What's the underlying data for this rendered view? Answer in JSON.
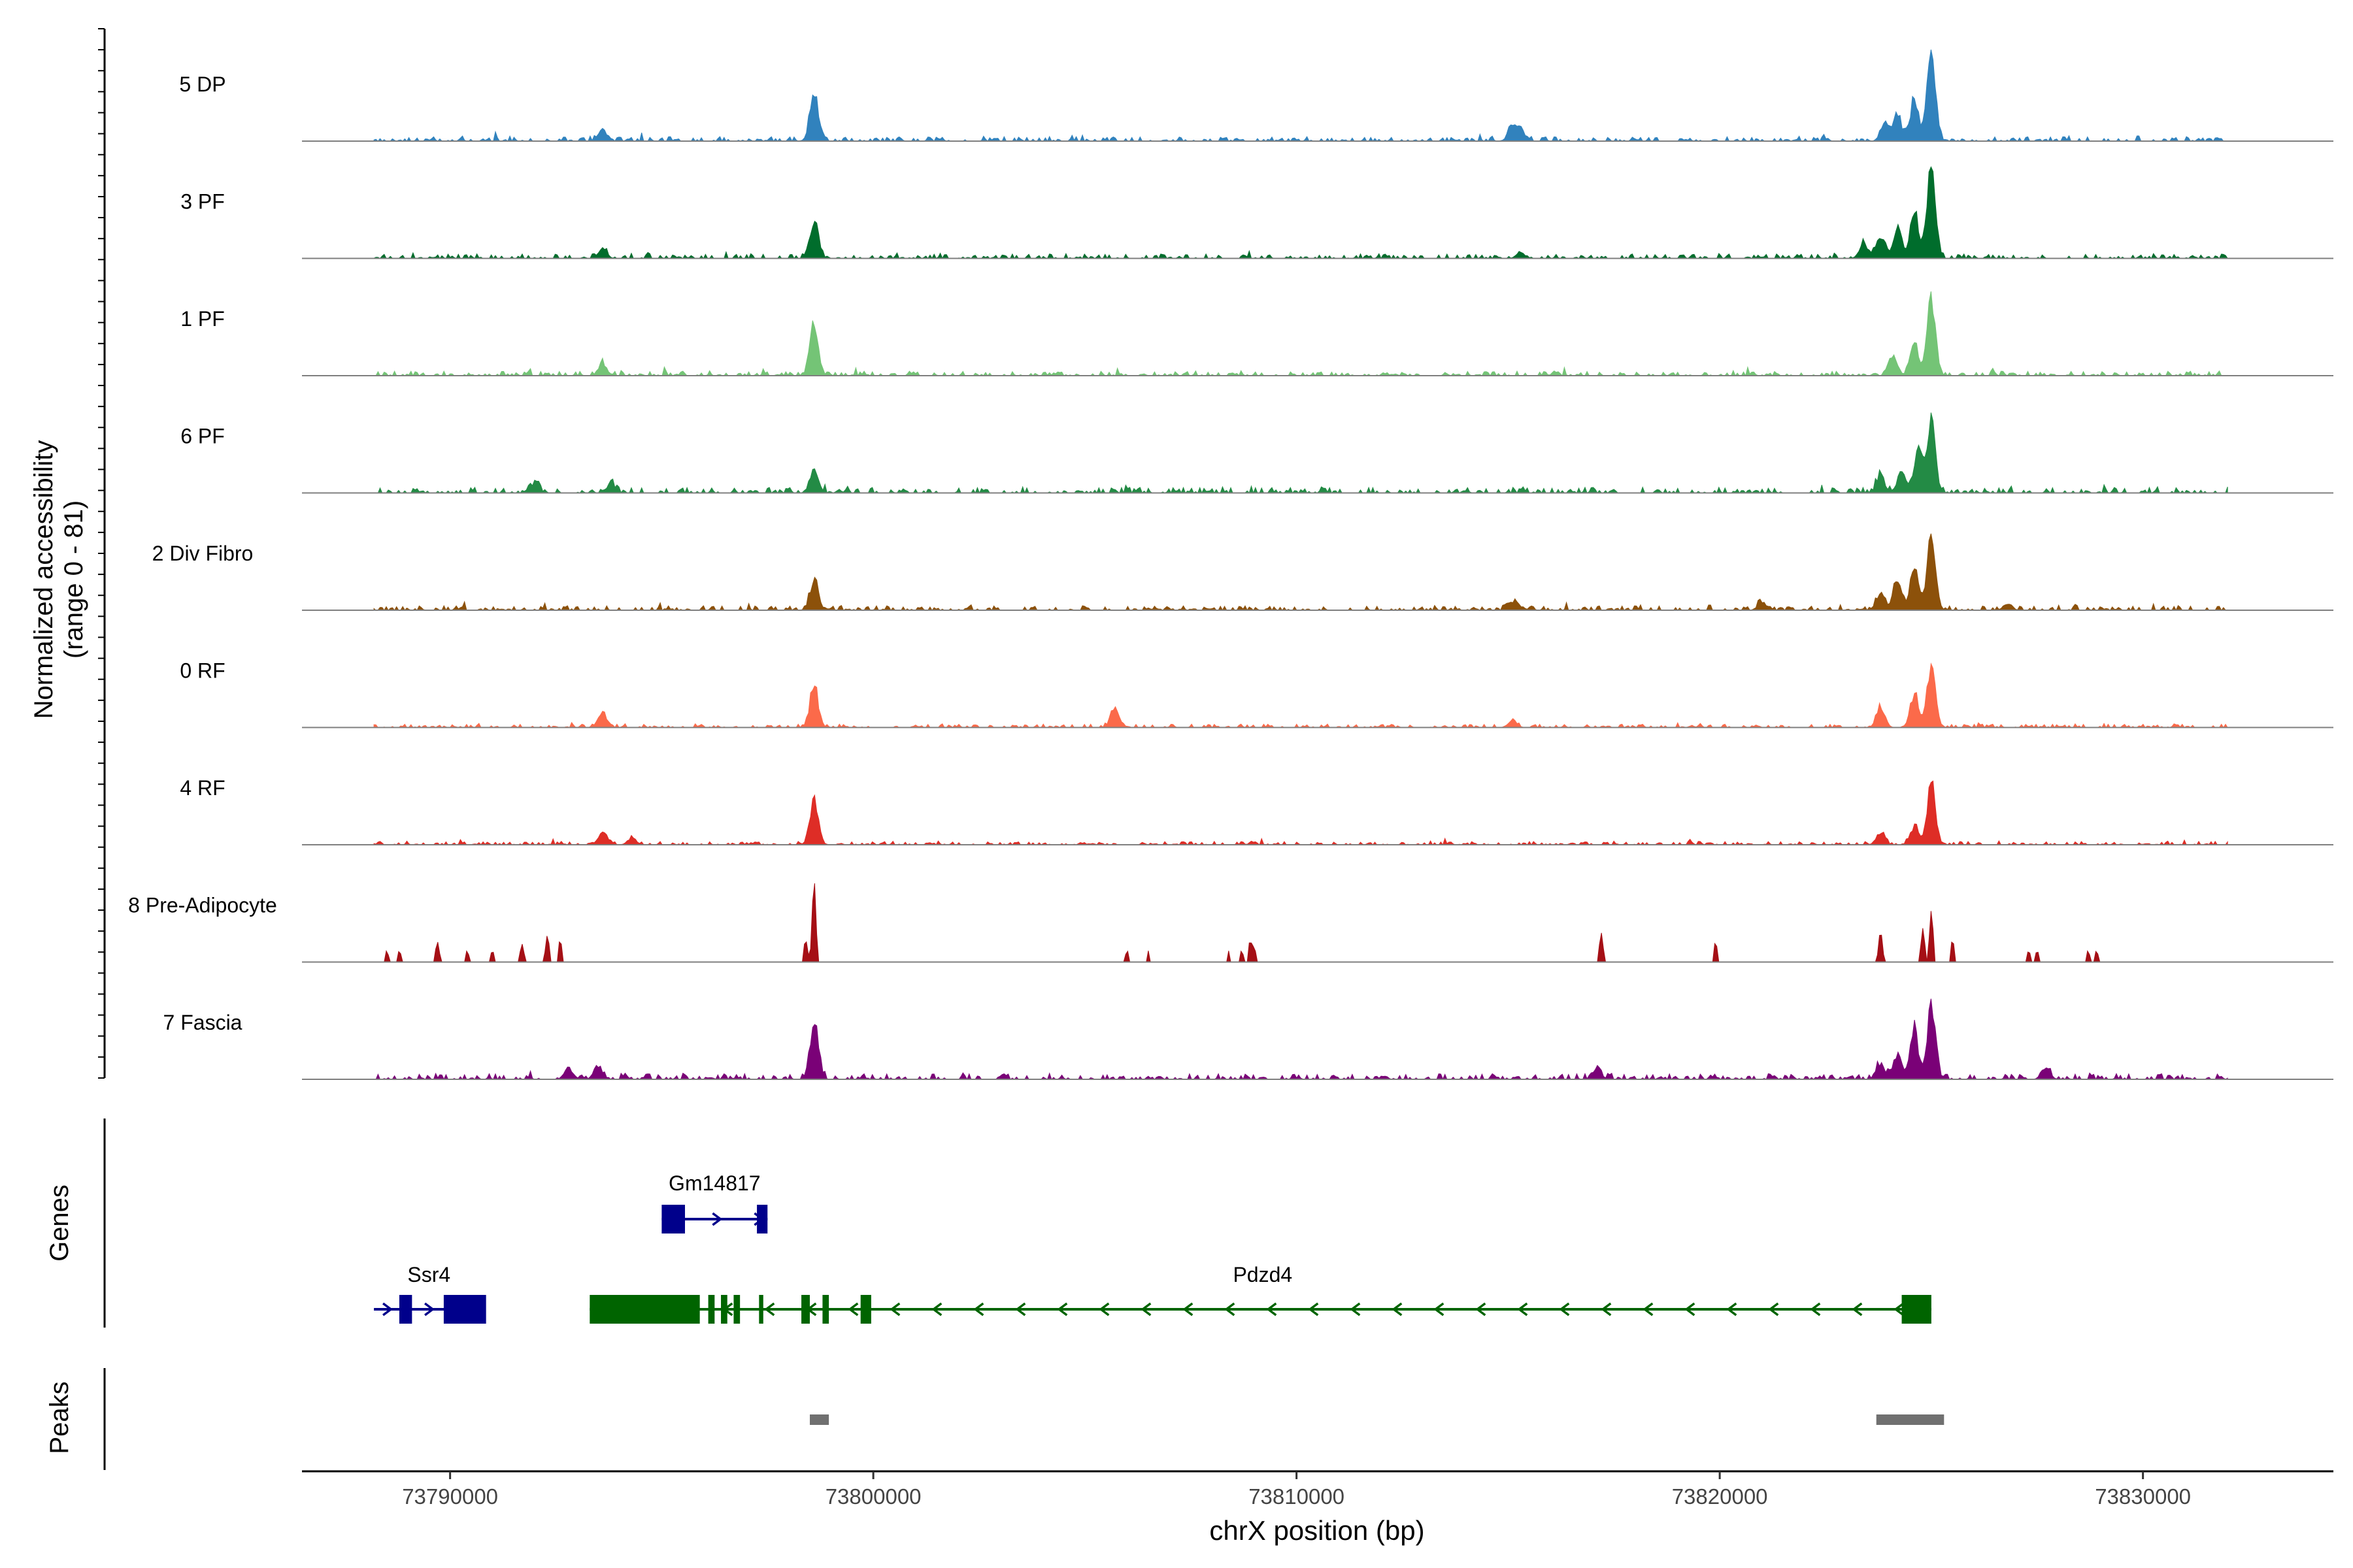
{
  "chart_data": {
    "type": "area",
    "title": "",
    "chromosome": "chrX",
    "xlabel": "chrX position (bp)",
    "ylabel_line1": "Normalized accessibility",
    "ylabel_line2": "(range 0 - 81)",
    "y_range": [
      0,
      81
    ],
    "xlim": [
      73786500,
      73834500
    ],
    "data_extent": [
      73788200,
      73832000
    ],
    "x_ticks": [
      73790000,
      73800000,
      73810000,
      73820000,
      73830000
    ],
    "x_tick_labels": [
      "73790000",
      "73800000",
      "73810000",
      "73820000",
      "73830000"
    ],
    "panel_labels": {
      "genes": "Genes",
      "peaks": "Peaks"
    },
    "tracks": [
      {
        "name": "5 DP",
        "color": "#3182BD",
        "peaks": [
          [
            73798600,
            44
          ],
          [
            73825000,
            81
          ],
          [
            73824600,
            35
          ],
          [
            73824200,
            22
          ],
          [
            73823900,
            16
          ],
          [
            73793600,
            10
          ],
          [
            73815100,
            14
          ],
          [
            73815300,
            8
          ]
        ],
        "noise": 4,
        "sparse": false
      },
      {
        "name": "3 PF",
        "color": "#006D2C",
        "peaks": [
          [
            73798600,
            34
          ],
          [
            73825000,
            79
          ],
          [
            73824600,
            42
          ],
          [
            73824200,
            26
          ],
          [
            73823800,
            20
          ],
          [
            73823400,
            14
          ],
          [
            73793600,
            8
          ],
          [
            73815300,
            5
          ]
        ],
        "noise": 4,
        "sparse": false
      },
      {
        "name": "1 PF",
        "color": "#74C476",
        "peaks": [
          [
            73798600,
            45
          ],
          [
            73825000,
            66
          ],
          [
            73824600,
            28
          ],
          [
            73824100,
            18
          ],
          [
            73793600,
            11
          ],
          [
            73785000,
            0
          ]
        ],
        "noise": 4,
        "sparse": false
      },
      {
        "name": "6 PF",
        "color": "#238B45",
        "peaks": [
          [
            73798600,
            20
          ],
          [
            73825000,
            62
          ],
          [
            73824700,
            40
          ],
          [
            73824300,
            18
          ],
          [
            73823800,
            14
          ],
          [
            73792000,
            8
          ],
          [
            73793800,
            8
          ]
        ],
        "noise": 5,
        "sparse": false
      },
      {
        "name": "2 Div Fibro",
        "color": "#8C510A",
        "peaks": [
          [
            73798600,
            26
          ],
          [
            73825000,
            62
          ],
          [
            73824600,
            38
          ],
          [
            73824200,
            26
          ],
          [
            73823800,
            14
          ],
          [
            73815100,
            8
          ],
          [
            73821000,
            7
          ],
          [
            73826800,
            6
          ]
        ],
        "noise": 4,
        "sparse": false
      },
      {
        "name": "0 RF",
        "color": "#FB6A4A",
        "peaks": [
          [
            73798600,
            36
          ],
          [
            73825000,
            55
          ],
          [
            73824600,
            30
          ],
          [
            73823800,
            18
          ],
          [
            73793600,
            14
          ],
          [
            73805700,
            16
          ],
          [
            73815100,
            6
          ]
        ],
        "noise": 3,
        "sparse": false
      },
      {
        "name": "4 RF",
        "color": "#DE2D26",
        "peaks": [
          [
            73798600,
            38
          ],
          [
            73825000,
            54
          ],
          [
            73824600,
            16
          ],
          [
            73823800,
            10
          ],
          [
            73793600,
            11
          ],
          [
            73794300,
            6
          ]
        ],
        "noise": 3,
        "sparse": false
      },
      {
        "name": "8 Pre-Adipocyte",
        "color": "#A50F15",
        "peaks": [
          [
            73798600,
            74
          ],
          [
            73798400,
            20
          ],
          [
            73825000,
            46
          ],
          [
            73824800,
            30
          ],
          [
            73825500,
            20
          ],
          [
            73823800,
            28
          ],
          [
            73817200,
            26
          ],
          [
            73819900,
            18
          ],
          [
            73792300,
            24
          ],
          [
            73792600,
            20
          ],
          [
            73791700,
            16
          ],
          [
            73789700,
            18
          ],
          [
            73788500,
            10
          ],
          [
            73788800,
            10
          ],
          [
            73790400,
            10
          ],
          [
            73791000,
            10
          ],
          [
            73806000,
            10
          ],
          [
            73806500,
            10
          ],
          [
            73808400,
            10
          ],
          [
            73808700,
            10
          ],
          [
            73808900,
            18
          ],
          [
            73809000,
            12
          ],
          [
            73827300,
            10
          ],
          [
            73827500,
            10
          ],
          [
            73828700,
            10
          ],
          [
            73828900,
            10
          ]
        ],
        "noise": 0,
        "sparse": true
      },
      {
        "name": "7 Fascia",
        "color": "#7A0177",
        "peaks": [
          [
            73798600,
            50
          ],
          [
            73825000,
            62
          ],
          [
            73824600,
            40
          ],
          [
            73824200,
            22
          ],
          [
            73823800,
            14
          ],
          [
            73793500,
            12
          ],
          [
            73792800,
            10
          ],
          [
            73817100,
            9
          ],
          [
            73827700,
            10
          ]
        ],
        "noise": 5,
        "sparse": false
      }
    ],
    "genes": [
      {
        "name": "Gm14817",
        "strand": "+",
        "color": "#00008B",
        "start": 73795000,
        "end": 73797500,
        "exons": [
          [
            73795000,
            73795550
          ],
          [
            73797250,
            73797500
          ]
        ]
      },
      {
        "name": "Ssr4",
        "strand": "+",
        "color": "#00008B",
        "start": 73788200,
        "end": 73790800,
        "exons": [
          [
            73788800,
            73789100
          ],
          [
            73789850,
            73790850
          ]
        ]
      },
      {
        "name": "Pdzd4",
        "strand": "-",
        "color": "#006400",
        "start": 73793300,
        "end": 73825000,
        "exons": [
          [
            73793300,
            73795900
          ],
          [
            73796100,
            73796250
          ],
          [
            73796400,
            73796550
          ],
          [
            73796700,
            73796850
          ],
          [
            73797300,
            73797400
          ],
          [
            73798300,
            73798500
          ],
          [
            73798800,
            73798950
          ],
          [
            73799700,
            73799950
          ],
          [
            73824300,
            73825000
          ]
        ]
      }
    ],
    "peaks": [
      [
        73798500,
        73798950
      ],
      [
        73823700,
        73825300
      ]
    ]
  }
}
